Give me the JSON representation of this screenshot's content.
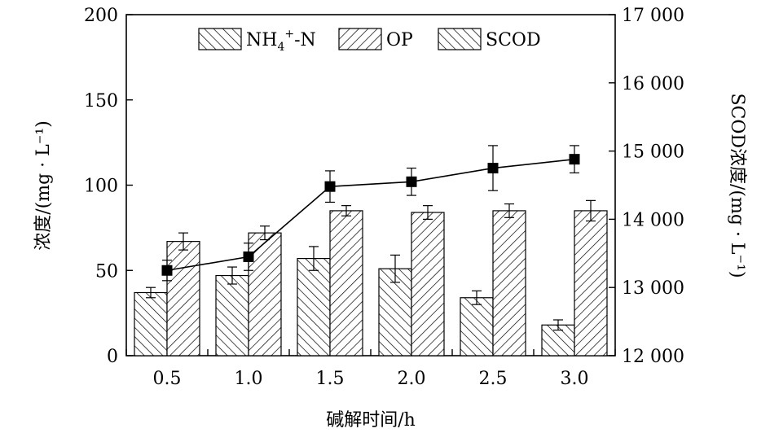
{
  "chart_data": {
    "type": "bar",
    "categories": [
      "0.5",
      "1.0",
      "1.5",
      "2.0",
      "2.5",
      "3.0"
    ],
    "xlabel": "碱解时间/h",
    "ylabel_left": "浓度/(mg · L⁻¹)",
    "ylabel_right": "SCOD浓度/(mg · L⁻¹)",
    "ylim_left": [
      0,
      200
    ],
    "yticks_left": [
      "0",
      "50",
      "100",
      "150",
      "200"
    ],
    "ylim_right": [
      12000,
      17000
    ],
    "yticks_right": [
      "12 000",
      "13 000",
      "14 000",
      "15 000",
      "16 000",
      "17 000"
    ],
    "grid": false,
    "legend_position": "top",
    "legend": {
      "nh4_label": "NH",
      "nh4_sub": "4",
      "nh4_sup": "+",
      "nh4_tail": "-N",
      "op_label": "OP",
      "scod_label": "SCOD"
    },
    "series": [
      {
        "name": "NH4+-N",
        "kind": "bar",
        "axis": "left",
        "pattern": "backslash-hatch",
        "values": [
          37,
          47,
          57,
          51,
          34,
          18
        ],
        "errors": [
          3,
          5,
          7,
          8,
          4,
          3
        ]
      },
      {
        "name": "OP",
        "kind": "bar",
        "axis": "left",
        "pattern": "slash-hatch",
        "values": [
          67,
          72,
          85,
          84,
          85,
          85
        ],
        "errors": [
          5,
          4,
          3,
          4,
          4,
          6
        ]
      },
      {
        "name": "SCOD",
        "kind": "line",
        "axis": "right",
        "marker": "square",
        "values": [
          13250,
          13450,
          14480,
          14550,
          14750,
          14880
        ],
        "errors": [
          150,
          200,
          230,
          200,
          330,
          200
        ]
      }
    ]
  }
}
